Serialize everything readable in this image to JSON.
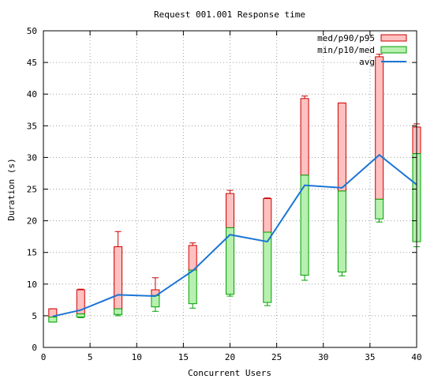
{
  "chart_data": {
    "type": "box",
    "title": "Request 001.001 Response time",
    "xlabel": "Concurrent Users",
    "ylabel": "Duration (s)",
    "xlim": [
      0,
      40
    ],
    "ylim": [
      0,
      50
    ],
    "xticks": [
      0,
      5,
      10,
      15,
      20,
      25,
      30,
      35,
      40
    ],
    "yticks": [
      0,
      5,
      10,
      15,
      20,
      25,
      30,
      35,
      40,
      45,
      50
    ],
    "grid": true,
    "legend_position": "top-right",
    "legend": [
      {
        "label": "med/p90/p95",
        "kind": "box",
        "color": "#ffc0c0",
        "stroke": "#cc0000"
      },
      {
        "label": "min/p10/med",
        "kind": "box",
        "color": "#b8f0b0",
        "stroke": "#00a000"
      },
      {
        "label": "avg",
        "kind": "line",
        "color": "#1a75d6"
      }
    ],
    "colors": {
      "upper_fill": "#ffc0c0",
      "upper_stroke": "#cc0000",
      "lower_fill": "#b8f0b0",
      "lower_stroke": "#00a000",
      "avg": "#1a75d6"
    },
    "points": [
      {
        "x": 1,
        "min": 4.0,
        "p10": 4.0,
        "med": 4.8,
        "p90": 6.1,
        "p95": 6.1,
        "avg": 4.9
      },
      {
        "x": 4,
        "min": 4.7,
        "p10": 4.8,
        "med": 5.3,
        "p90": 9.1,
        "p95": 9.2,
        "avg": 5.9
      },
      {
        "x": 8,
        "min": 5.0,
        "p10": 5.2,
        "med": 6.1,
        "p90": 15.9,
        "p95": 18.3,
        "avg": 8.3
      },
      {
        "x": 12,
        "min": 5.7,
        "p10": 6.4,
        "med": 8.2,
        "p90": 9.1,
        "p95": 11.0,
        "avg": 8.1
      },
      {
        "x": 16,
        "min": 6.2,
        "p10": 6.9,
        "med": 12.2,
        "p90": 16.1,
        "p95": 16.5,
        "avg": 12.1
      },
      {
        "x": 20,
        "min": 8.1,
        "p10": 8.4,
        "med": 18.9,
        "p90": 24.3,
        "p95": 24.8,
        "avg": 17.8
      },
      {
        "x": 24,
        "min": 6.6,
        "p10": 7.1,
        "med": 18.2,
        "p90": 23.5,
        "p95": 23.6,
        "avg": 16.7
      },
      {
        "x": 28,
        "min": 10.6,
        "p10": 11.4,
        "med": 27.2,
        "p90": 39.3,
        "p95": 39.7,
        "avg": 25.6
      },
      {
        "x": 32,
        "min": 11.3,
        "p10": 11.9,
        "med": 24.7,
        "p90": 38.6,
        "p95": 38.6,
        "avg": 25.2
      },
      {
        "x": 36,
        "min": 19.8,
        "p10": 20.3,
        "med": 23.4,
        "p90": 45.9,
        "p95": 46.3,
        "avg": 30.4
      },
      {
        "x": 40,
        "min": 15.9,
        "p10": 16.7,
        "med": 30.6,
        "p90": 34.8,
        "p95": 35.3,
        "avg": 25.7
      }
    ]
  }
}
